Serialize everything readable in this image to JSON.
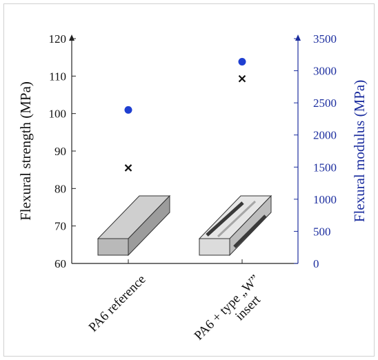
{
  "chart_data": {
    "type": "scatter",
    "categories": [
      "PA6 reference",
      "PA6 + type „W” insert"
    ],
    "category_label_lines": [
      [
        "PA6 reference"
      ],
      [
        "PA6 + type „W”",
        "insert"
      ]
    ],
    "series": [
      {
        "name": "Flexural strength (MPa)",
        "axis": "left",
        "marker": "x",
        "color": "#111111",
        "values": [
          85.5,
          109.3
        ]
      },
      {
        "name": "Flexural modulus (MPa)",
        "axis": "right",
        "marker": "circle",
        "color": "#1f3fd1",
        "values": [
          2390,
          3140
        ]
      }
    ],
    "ylabel": "Flexural strength (MPa)",
    "ylabel_right": "Flexural modulus (MPa)",
    "ylim": [
      60,
      120
    ],
    "ylim_right": [
      0,
      3500
    ],
    "yticks": [
      60,
      70,
      80,
      90,
      100,
      110,
      120
    ],
    "yticks_right": [
      0,
      500,
      1000,
      1500,
      2000,
      2500,
      3000,
      3500
    ],
    "grid": false,
    "legend": "none",
    "axis_color_right": "#1a2c9e"
  }
}
